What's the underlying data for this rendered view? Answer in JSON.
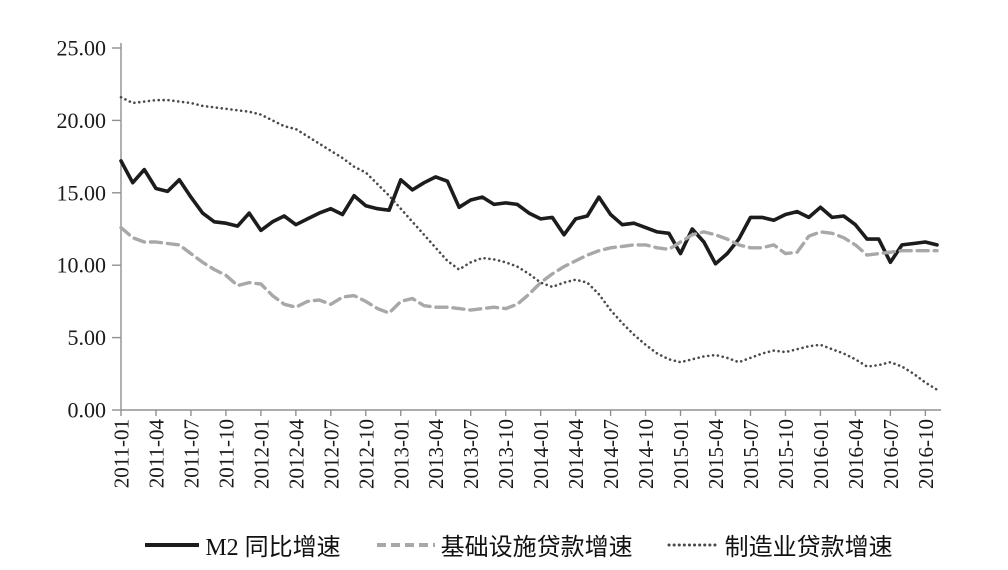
{
  "chart_data": {
    "type": "line",
    "title": "",
    "xlabel": "",
    "ylabel": "",
    "grid": false,
    "legend_position": "bottom",
    "ylim": [
      0,
      25
    ],
    "y_ticks": [
      0,
      5,
      10,
      15,
      20,
      25
    ],
    "y_tick_labels": [
      "0.00",
      "5.00",
      "10.00",
      "15.00",
      "20.00",
      "25.00"
    ],
    "x_tick_every": 3,
    "x_tick_labels": [
      "2011-01",
      "2011-04",
      "2011-07",
      "2011-10",
      "2012-01",
      "2012-04",
      "2012-07",
      "2012-10",
      "2013-01",
      "2013-04",
      "2013-07",
      "2013-10",
      "2014-01",
      "2014-04",
      "2014-07",
      "2014-10",
      "2015-01",
      "2015-04",
      "2015-07",
      "2015-10",
      "2016-01",
      "2016-04",
      "2016-07",
      "2016-10"
    ],
    "x": [
      "2011-01",
      "2011-02",
      "2011-03",
      "2011-04",
      "2011-05",
      "2011-06",
      "2011-07",
      "2011-08",
      "2011-09",
      "2011-10",
      "2011-11",
      "2011-12",
      "2012-01",
      "2012-02",
      "2012-03",
      "2012-04",
      "2012-05",
      "2012-06",
      "2012-07",
      "2012-08",
      "2012-09",
      "2012-10",
      "2012-11",
      "2012-12",
      "2013-01",
      "2013-02",
      "2013-03",
      "2013-04",
      "2013-05",
      "2013-06",
      "2013-07",
      "2013-08",
      "2013-09",
      "2013-10",
      "2013-11",
      "2013-12",
      "2014-01",
      "2014-02",
      "2014-03",
      "2014-04",
      "2014-05",
      "2014-06",
      "2014-07",
      "2014-08",
      "2014-09",
      "2014-10",
      "2014-11",
      "2014-12",
      "2015-01",
      "2015-02",
      "2015-03",
      "2015-04",
      "2015-05",
      "2015-06",
      "2015-07",
      "2015-08",
      "2015-09",
      "2015-10",
      "2015-11",
      "2015-12",
      "2016-01",
      "2016-02",
      "2016-03",
      "2016-04",
      "2016-05",
      "2016-06",
      "2016-07",
      "2016-08",
      "2016-09",
      "2016-10",
      "2016-11"
    ],
    "axis_color": "#909090",
    "series": [
      {
        "name": "M2 同比增速",
        "style": "solid",
        "color": "#1c1c1c",
        "width": 3.6,
        "values": [
          17.2,
          15.7,
          16.6,
          15.3,
          15.1,
          15.9,
          14.7,
          13.6,
          13.0,
          12.9,
          12.7,
          13.6,
          12.4,
          13.0,
          13.4,
          12.8,
          13.2,
          13.6,
          13.9,
          13.5,
          14.8,
          14.1,
          13.9,
          13.8,
          15.9,
          15.2,
          15.7,
          16.1,
          15.8,
          14.0,
          14.5,
          14.7,
          14.2,
          14.3,
          14.2,
          13.6,
          13.2,
          13.3,
          12.1,
          13.2,
          13.4,
          14.7,
          13.5,
          12.8,
          12.9,
          12.6,
          12.3,
          12.2,
          10.8,
          12.5,
          11.6,
          10.1,
          10.8,
          11.8,
          13.3,
          13.3,
          13.1,
          13.5,
          13.7,
          13.3,
          14.0,
          13.3,
          13.4,
          12.8,
          11.8,
          11.8,
          10.2,
          11.4,
          11.5,
          11.6,
          11.4
        ]
      },
      {
        "name": "基础设施贷款增速",
        "style": "dashed",
        "color": "#a8a8a8",
        "width": 3.4,
        "values": [
          12.6,
          11.9,
          11.6,
          11.6,
          11.5,
          11.4,
          10.8,
          10.2,
          9.7,
          9.3,
          8.6,
          8.8,
          8.7,
          7.9,
          7.3,
          7.1,
          7.5,
          7.6,
          7.3,
          7.8,
          7.9,
          7.5,
          7.0,
          6.7,
          7.5,
          7.7,
          7.2,
          7.1,
          7.1,
          7.0,
          6.9,
          7.0,
          7.1,
          7.0,
          7.3,
          8.0,
          8.8,
          9.4,
          9.9,
          10.3,
          10.7,
          11.0,
          11.2,
          11.3,
          11.4,
          11.4,
          11.2,
          11.1,
          11.6,
          12.1,
          12.3,
          12.1,
          11.8,
          11.4,
          11.2,
          11.2,
          11.4,
          10.8,
          10.9,
          12.0,
          12.3,
          12.2,
          11.9,
          11.4,
          10.7,
          10.8,
          10.9,
          11.0,
          11.0,
          11.0,
          11.0
        ]
      },
      {
        "name": "制造业贷款增速",
        "style": "dotted",
        "color": "#4a4a4a",
        "width": 2.6,
        "values": [
          21.6,
          21.2,
          21.3,
          21.4,
          21.4,
          21.3,
          21.2,
          21.0,
          20.9,
          20.8,
          20.7,
          20.6,
          20.4,
          20.0,
          19.6,
          19.4,
          18.9,
          18.4,
          17.9,
          17.4,
          16.8,
          16.4,
          15.6,
          14.8,
          13.9,
          13.0,
          12.1,
          11.2,
          10.3,
          9.7,
          10.2,
          10.5,
          10.4,
          10.2,
          9.9,
          9.4,
          8.8,
          8.5,
          8.8,
          9.0,
          8.8,
          8.0,
          6.9,
          6.0,
          5.2,
          4.5,
          3.9,
          3.5,
          3.3,
          3.5,
          3.7,
          3.8,
          3.6,
          3.3,
          3.6,
          3.9,
          4.1,
          4.0,
          4.2,
          4.4,
          4.5,
          4.2,
          3.9,
          3.5,
          3.0,
          3.1,
          3.3,
          3.0,
          2.5,
          1.9,
          1.4
        ]
      }
    ]
  }
}
